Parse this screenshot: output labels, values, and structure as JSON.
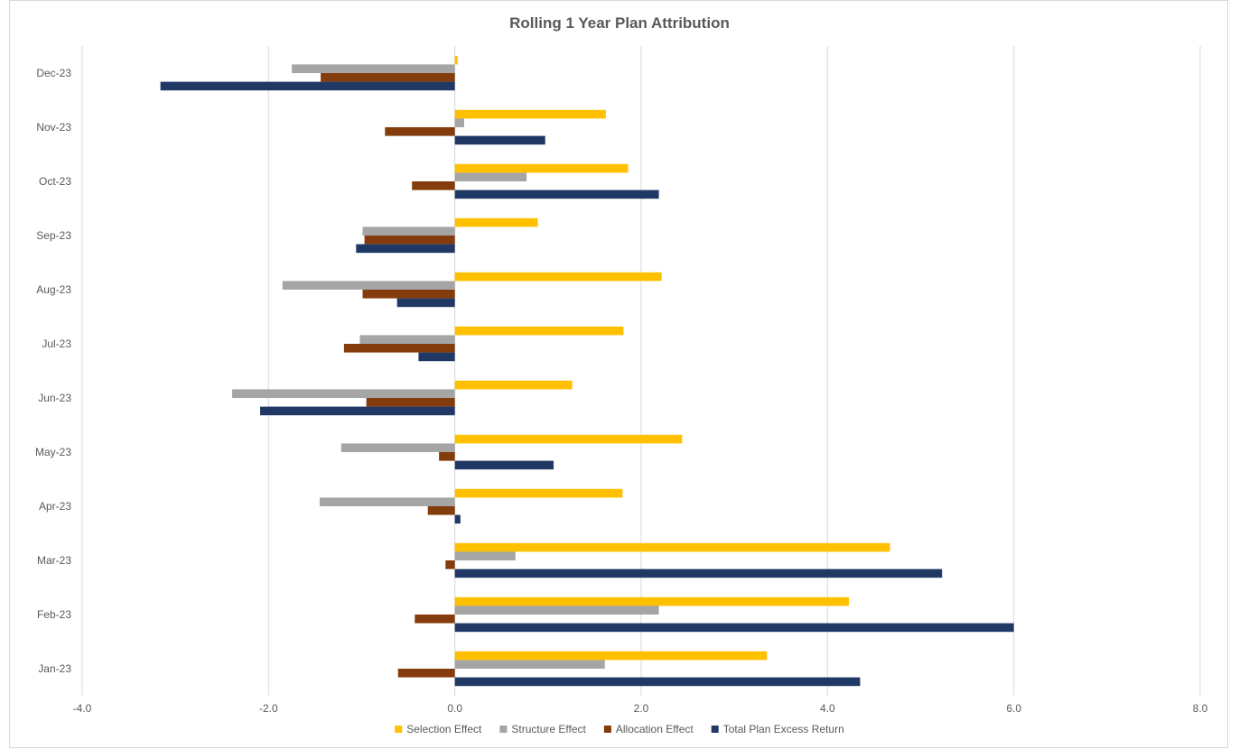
{
  "chart_data": {
    "type": "bar",
    "orientation": "horizontal",
    "title": "Rolling 1 Year Plan Attribution",
    "xlim": [
      -4.0,
      8.0
    ],
    "x_ticks": [
      "-4.0",
      "-2.0",
      "0.0",
      "2.0",
      "4.0",
      "6.0",
      "8.0"
    ],
    "x_tick_values": [
      -4,
      -2,
      0,
      2,
      4,
      6,
      8
    ],
    "grid": true,
    "legend_position": "bottom",
    "categories": [
      "Dec-23",
      "Nov-23",
      "Oct-23",
      "Sep-23",
      "Aug-23",
      "Jul-23",
      "Jun-23",
      "May-23",
      "Apr-23",
      "Mar-23",
      "Feb-23",
      "Jan-23"
    ],
    "series": [
      {
        "name": "Selection Effect",
        "color": "#ffc000",
        "values": [
          0.03,
          1.62,
          1.86,
          0.89,
          2.22,
          1.81,
          1.26,
          2.44,
          1.8,
          4.67,
          4.23,
          3.35
        ]
      },
      {
        "name": "Structure Effect",
        "color": "#a5a5a5",
        "values": [
          -1.75,
          0.1,
          0.77,
          -0.99,
          -1.85,
          -1.02,
          -2.39,
          -1.22,
          -1.45,
          0.65,
          2.19,
          1.61
        ]
      },
      {
        "name": "Allocation Effect",
        "color": "#843c0c",
        "values": [
          -1.44,
          -0.75,
          -0.46,
          -0.97,
          -0.99,
          -1.19,
          -0.95,
          -0.17,
          -0.29,
          -0.1,
          -0.43,
          -0.61
        ]
      },
      {
        "name": "Total Plan Excess Return",
        "color": "#203864",
        "values": [
          -3.16,
          0.97,
          2.19,
          -1.06,
          -0.62,
          -0.39,
          -2.09,
          1.06,
          0.06,
          5.23,
          6.0,
          4.35
        ]
      }
    ]
  }
}
